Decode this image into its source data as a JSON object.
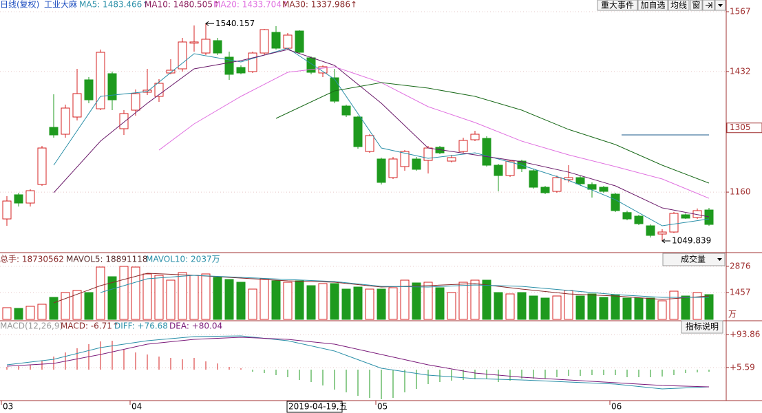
{
  "header": {
    "period": "日线(复权)",
    "name": "工业大麻",
    "ma_labels": [
      {
        "text": "MA5: 1483.466↑",
        "color": "#2a8fa8"
      },
      {
        "text": "MA10: 1480.505↑",
        "color": "#8a1a5a"
      },
      {
        "text": "MA20: 1433.704↑",
        "color": "#e070e0"
      },
      {
        "text": "MA30: 1337.986↑",
        "color": "#8a2a2a"
      }
    ]
  },
  "buttons": [
    "重大事件",
    "加自选",
    "均线",
    "窗"
  ],
  "volume_header": [
    "总手: 18730562",
    "MAVOL5: 18891118",
    "MAVOL10: 2037万"
  ],
  "volume_selector": "成交量",
  "macd_header": [
    "MACD(12,26,9)",
    "MACD: -6.71↑",
    "DIFF: +76.68",
    "DEA: +80.04"
  ],
  "indicator_button": "指标说明",
  "x_axis": {
    "ticks": [
      {
        "x": 0,
        "label": "03"
      },
      {
        "x": 11,
        "label": "04"
      },
      {
        "x": 32,
        "label": "05"
      },
      {
        "x": 52,
        "label": "06"
      }
    ],
    "cursor": {
      "x": 24,
      "label": "2019-04-19,五"
    }
  },
  "chart_data": [
    {
      "type": "candlestick",
      "ylim": [
        1026.6,
        1593.4
      ],
      "yticks": [
        1567,
        1432,
        1160
      ],
      "cursor_price": 1305,
      "up_color": "#d42020",
      "down_color": "#1e9a1e",
      "grid": true,
      "high_label_at": 17,
      "low_label_at": 56,
      "reference_line": {
        "value": 1289.0,
        "x": [
          53,
          60
        ]
      },
      "ohlc": [
        [
          1099.5,
          1150.8,
          1084.0,
          1139.9
        ],
        [
          1154.0,
          1158.6,
          1127.5,
          1135.3
        ],
        [
          1135.3,
          1166.3,
          1127.5,
          1163.2
        ],
        [
          1177.2,
          1264.2,
          1174.1,
          1259.5
        ],
        [
          1306.1,
          1380.6,
          1282.8,
          1289.0
        ],
        [
          1290.6,
          1357.3,
          1282.8,
          1349.6
        ],
        [
          1329.4,
          1438.1,
          1321.6,
          1382.2
        ],
        [
          1413.3,
          1419.5,
          1360.4,
          1368.2
        ],
        [
          1348.0,
          1481.6,
          1344.9,
          1475.4
        ],
        [
          1427.2,
          1432.0,
          1344.9,
          1368.2
        ],
        [
          1303.0,
          1344.9,
          1289.0,
          1337.2
        ],
        [
          1344.9,
          1391.5,
          1332.5,
          1382.2
        ],
        [
          1385.3,
          1438.1,
          1379.1,
          1390.0
        ],
        [
          1376.0,
          1414.8,
          1363.6,
          1405.5
        ],
        [
          1428.8,
          1459.8,
          1425.7,
          1435.0
        ],
        [
          1438.1,
          1508.0,
          1431.9,
          1498.7
        ],
        [
          1496.0,
          1535.9,
          1476.9,
          1498.7
        ],
        [
          1473.8,
          1540.157,
          1469.2,
          1504.9
        ],
        [
          1501.8,
          1508.0,
          1469.2,
          1473.8
        ],
        [
          1464.5,
          1476.9,
          1413.3,
          1425.7
        ],
        [
          1441.2,
          1445.9,
          1425.7,
          1428.8
        ],
        [
          1431.9,
          1476.9,
          1428.8,
          1473.8
        ],
        [
          1473.8,
          1528.2,
          1469.2,
          1526.6
        ],
        [
          1520.4,
          1534.4,
          1481.6,
          1484.7
        ],
        [
          1484.7,
          1518.9,
          1481.6,
          1514.2
        ],
        [
          1523.5,
          1525.1,
          1472.3,
          1475.4
        ],
        [
          1463.0,
          1466.1,
          1425.7,
          1430.3
        ],
        [
          1428.8,
          1445.9,
          1419.5,
          1442.8
        ],
        [
          1417.9,
          1438.1,
          1360.4,
          1365.1
        ],
        [
          1354.2,
          1357.3,
          1329.4,
          1334.0
        ],
        [
          1329.4,
          1332.5,
          1258.0,
          1262.6
        ],
        [
          1251.7,
          1290.6,
          1248.6,
          1287.5
        ],
        [
          1234.7,
          1237.8,
          1177.2,
          1181.9
        ],
        [
          1192.7,
          1239.3,
          1189.6,
          1234.7
        ],
        [
          1217.6,
          1254.8,
          1208.3,
          1251.7
        ],
        [
          1234.7,
          1239.3,
          1208.3,
          1211.4
        ],
        [
          1231.5,
          1264.2,
          1202.0,
          1259.5
        ],
        [
          1261.1,
          1264.2,
          1245.5,
          1248.6
        ],
        [
          1230.0,
          1244.0,
          1226.9,
          1237.8
        ],
        [
          1251.7,
          1282.8,
          1248.6,
          1276.6
        ],
        [
          1278.1,
          1298.3,
          1275.0,
          1290.6
        ],
        [
          1281.2,
          1285.9,
          1217.6,
          1220.7
        ],
        [
          1220.7,
          1223.8,
          1161.7,
          1197.4
        ],
        [
          1197.4,
          1233.1,
          1194.3,
          1230.0
        ],
        [
          1230.0,
          1233.1,
          1205.1,
          1212.9
        ],
        [
          1208.3,
          1211.4,
          1167.9,
          1171.0
        ],
        [
          1171.0,
          1174.1,
          1155.5,
          1158.6
        ],
        [
          1161.7,
          1197.4,
          1158.6,
          1192.7
        ],
        [
          1188.1,
          1220.7,
          1181.9,
          1192.7
        ],
        [
          1192.7,
          1197.4,
          1174.1,
          1178.8
        ],
        [
          1177.2,
          1181.9,
          1147.7,
          1166.3
        ],
        [
          1171.0,
          1174.1,
          1158.6,
          1161.7
        ],
        [
          1155.5,
          1158.6,
          1115.1,
          1118.2
        ],
        [
          1113.9,
          1118.2,
          1096.4,
          1099.5
        ],
        [
          1105.8,
          1108.9,
          1085.6,
          1088.7
        ],
        [
          1084.0,
          1087.1,
          1057.6,
          1062.3
        ],
        [
          1065.4,
          1076.3,
          1049.839,
          1070.0
        ],
        [
          1070.0,
          1115.1,
          1068.0,
          1112.0
        ],
        [
          1108.9,
          1112.0,
          1099.5,
          1101.2
        ],
        [
          1102.7,
          1123.1,
          1099.5,
          1118.2
        ],
        [
          1119.7,
          1124.4,
          1084.0,
          1087.1
        ]
      ],
      "series": [
        {
          "color": "#2a8fa8",
          "x": [
            4,
            8,
            12,
            16,
            20,
            24,
            28,
            32,
            36,
            40,
            44,
            48,
            52,
            56,
            60
          ],
          "values": [
            1220.7,
            1376.0,
            1386.9,
            1472.3,
            1453.6,
            1484.7,
            1414.8,
            1259.5,
            1236.2,
            1248.6,
            1220.7,
            1186.5,
            1143.0,
            1084.0,
            1099.5
          ]
        },
        {
          "color": "#6a1a6a",
          "x": [
            4,
            8,
            12,
            16,
            20,
            24,
            28,
            32,
            36,
            40,
            44,
            48,
            52,
            56,
            60
          ],
          "values": [
            1158.6,
            1275.0,
            1360.4,
            1438.1,
            1456.7,
            1481.6,
            1445.9,
            1360.4,
            1259.5,
            1244.0,
            1228.5,
            1205.1,
            1174.1,
            1124.4,
            1104.2
          ]
        },
        {
          "color": "#e070e0",
          "x": [
            13,
            16,
            20,
            24,
            28,
            32,
            36,
            40,
            44,
            48,
            52,
            56,
            60
          ],
          "values": [
            1254.8,
            1313.9,
            1376.0,
            1430.3,
            1442.8,
            1407.0,
            1352.7,
            1317.0,
            1275.0,
            1244.0,
            1217.6,
            1189.6,
            1146.1
          ]
        },
        {
          "color": "#1a6a1a",
          "x": [
            23,
            28,
            32,
            36,
            40,
            44,
            48,
            52,
            56,
            60
          ],
          "values": [
            1326.3,
            1388.4,
            1407.0,
            1394.6,
            1376.0,
            1344.9,
            1301.4,
            1267.3,
            1220.7,
            1180.3
          ]
        }
      ]
    },
    {
      "type": "volume",
      "ylim": [
        0,
        3506
      ],
      "yticks": [
        2876,
        1457
      ],
      "unit": "万",
      "values": [
        634,
        597,
        709,
        821,
        1194,
        1455,
        1567,
        1455,
        2835,
        2313,
        2872,
        2835,
        2462,
        2387,
        2126,
        2536,
        2387,
        2462,
        2275,
        2163,
        2014,
        1641,
        2201,
        2089,
        2014,
        2089,
        1828,
        1940,
        1940,
        1641,
        1753,
        1641,
        1641,
        1716,
        2126,
        1977,
        2014,
        1716,
        1455,
        2014,
        2126,
        2126,
        1455,
        1380,
        1455,
        1268,
        1156,
        1268,
        1567,
        1268,
        1380,
        1194,
        1343,
        1156,
        1156,
        1156,
        1007,
        1529,
        1268,
        1455,
        1343
      ],
      "series": [
        {
          "color": "#8a2a2a",
          "x": [
            4,
            8,
            12,
            16,
            20,
            24,
            28,
            32,
            36,
            40,
            44,
            48,
            52,
            56,
            60
          ],
          "values": [
            895,
            1828,
            2499,
            2387,
            2238,
            2089,
            2014,
            1753,
            1828,
            1940,
            1641,
            1380,
            1268,
            1082,
            1268
          ]
        },
        {
          "color": "#2a8fa8",
          "x": [
            8,
            12,
            16,
            20,
            24,
            28,
            32,
            36,
            40,
            44,
            48,
            52,
            56,
            60
          ],
          "values": [
            1455,
            2201,
            2387,
            2275,
            2163,
            2052,
            1790,
            1753,
            1865,
            1790,
            1567,
            1343,
            1194,
            1194
          ]
        }
      ]
    },
    {
      "type": "macd",
      "ylim": [
        -82.8,
        123.2
      ],
      "yticks": [
        {
          "value": 93.86,
          "label": "+93.86"
        },
        {
          "value": 5.59,
          "label": "+5.59"
        }
      ],
      "up_color": "#d42020",
      "down_color": "#1e9a1e",
      "values": [
        7.4,
        9.2,
        12.9,
        23.9,
        34.9,
        46.0,
        57.0,
        68.0,
        75.4,
        77.2,
        53.3,
        46.0,
        40.5,
        34.9,
        31.3,
        27.6,
        31.3,
        22.1,
        16.6,
        7.4,
        3.7,
        -5.5,
        -9.2,
        -14.7,
        -20.2,
        -27.6,
        -33.1,
        -42.3,
        -53.3,
        -60.7,
        -69.9,
        -75.4,
        -79.1,
        -75.4,
        -60.7,
        -51.5,
        -38.6,
        -33.1,
        -29.4,
        -27.6,
        -25.7,
        -23.9,
        -33.1,
        -29.4,
        -23.9,
        -23.9,
        -23.9,
        -20.2,
        -16.6,
        -16.6,
        -14.7,
        -14.7,
        -14.7,
        -20.2,
        -20.2,
        -20.2,
        -18.4,
        -14.7,
        -9.2,
        -7.4,
        -5.5
      ],
      "series": [
        {
          "color": "#2a8fa8",
          "x": [
            0,
            4,
            8,
            12,
            16,
            20,
            24,
            28,
            32,
            36,
            40,
            44,
            48,
            52,
            56,
            60
          ],
          "values": [
            12.9,
            27.6,
            58.8,
            77.2,
            88.3,
            90.1,
            77.2,
            49.7,
            3.7,
            -14.7,
            -23.9,
            -27.6,
            -33.1,
            -38.6,
            -51.5,
            -46.0
          ]
        },
        {
          "color": "#7a1a7a",
          "x": [
            0,
            4,
            8,
            12,
            16,
            20,
            24,
            28,
            32,
            36,
            40,
            44,
            48,
            52,
            56,
            60
          ],
          "values": [
            9.2,
            16.6,
            40.5,
            68.0,
            80.9,
            86.4,
            80.9,
            68.0,
            40.5,
            12.9,
            -9.2,
            -20.2,
            -27.6,
            -34.9,
            -42.3,
            -46.0
          ]
        }
      ]
    }
  ]
}
